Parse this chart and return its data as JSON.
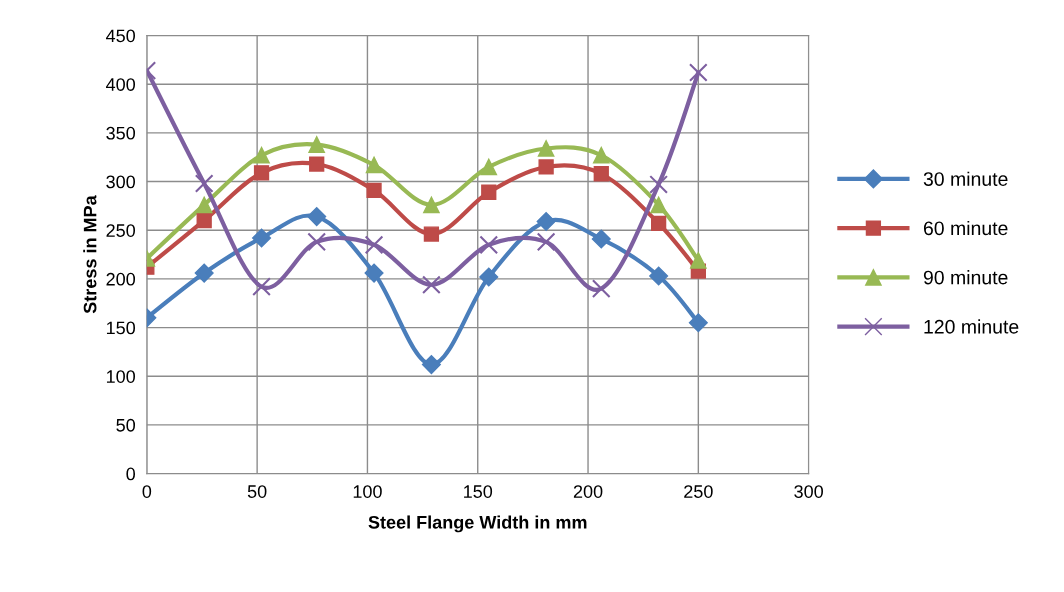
{
  "chart_data": {
    "type": "line",
    "xlabel": "Steel Flange Width in mm",
    "ylabel": "Stress in MPa",
    "x": [
      0,
      26,
      52,
      77,
      103,
      129,
      155,
      181,
      206,
      232,
      250
    ],
    "series": [
      {
        "name": "30 minute",
        "color": "#4a7ebb",
        "marker": "diamond",
        "values": [
          160,
          206,
          242,
          264,
          206,
          112,
          202,
          259,
          241,
          203,
          155
        ]
      },
      {
        "name": "60 minute",
        "color": "#be4b48",
        "marker": "square",
        "values": [
          212,
          260,
          309,
          318,
          291,
          246,
          289,
          315,
          308,
          257,
          208
        ]
      },
      {
        "name": "90 minute",
        "color": "#98b954",
        "marker": "triangle",
        "values": [
          221,
          276,
          327,
          338,
          317,
          276,
          315,
          334,
          327,
          276,
          219
        ]
      },
      {
        "name": "120 minute",
        "color": "#7d5fa0",
        "marker": "cross",
        "values": [
          414,
          298,
          192,
          238,
          235,
          194,
          235,
          238,
          190,
          297,
          412
        ]
      }
    ],
    "xlim": [
      0,
      300
    ],
    "xticks": [
      0,
      50,
      100,
      150,
      200,
      250,
      300
    ],
    "ylim": [
      0,
      450
    ],
    "yticks": [
      0,
      50,
      100,
      150,
      200,
      250,
      300,
      350,
      400,
      450
    ],
    "grid": true,
    "legend": "right",
    "line_style": "solid"
  }
}
